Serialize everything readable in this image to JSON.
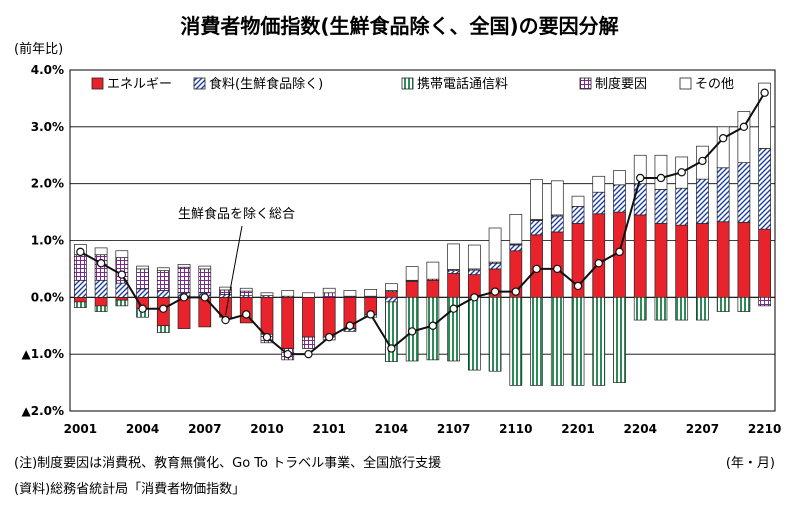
{
  "chart_data": {
    "type": "bar",
    "title": "消費者物価指数(生鮮食品除く、全国)の要因分解",
    "ylabel": "(前年比)",
    "xunit": "(年・月)",
    "ylim": [
      -2.0,
      4.0
    ],
    "ytick_values": [
      4.0,
      3.0,
      2.0,
      1.0,
      0.0,
      -1.0,
      -2.0
    ],
    "ytick_labels": [
      "4.0%",
      "3.0%",
      "2.0%",
      "1.0%",
      "0.0%",
      "▲1.0%",
      "▲2.0%"
    ],
    "x_tick_labels": [
      "2001",
      "2004",
      "2007",
      "2010",
      "2101",
      "2104",
      "2107",
      "2110",
      "2201",
      "2204",
      "2207",
      "2210"
    ],
    "x_tick_index": [
      0,
      3,
      6,
      9,
      12,
      15,
      18,
      21,
      24,
      27,
      30,
      33
    ],
    "months": [
      "2001",
      "2002",
      "2003",
      "2004",
      "2005",
      "2006",
      "2007",
      "2008",
      "2009",
      "2010",
      "2011",
      "2012",
      "2101",
      "2102",
      "2103",
      "2104",
      "2105",
      "2106",
      "2107",
      "2108",
      "2109",
      "2110",
      "2111",
      "2112",
      "2201",
      "2202",
      "2203",
      "2204",
      "2205",
      "2206",
      "2207",
      "2208",
      "2209",
      "2210"
    ],
    "grid": true,
    "legend_position": "top",
    "stacked": true,
    "series": [
      {
        "name": "エネルギー",
        "color": "#e8232b",
        "pattern": "solid",
        "values": [
          -0.08,
          -0.15,
          -0.05,
          -0.2,
          -0.5,
          -0.55,
          -0.52,
          -0.35,
          -0.45,
          -0.65,
          -0.9,
          -0.7,
          -0.7,
          -0.55,
          -0.3,
          0.1,
          0.28,
          0.3,
          0.42,
          0.4,
          0.5,
          0.82,
          1.1,
          1.15,
          1.3,
          1.47,
          1.5,
          1.45,
          1.3,
          1.27,
          1.3,
          1.33,
          1.32,
          1.2
        ]
      },
      {
        "name": "食料(生鮮食品除く)",
        "color": "#1f3fa8",
        "pattern": "diagonal",
        "values": [
          0.3,
          0.3,
          0.25,
          0.15,
          0.12,
          0.08,
          0.08,
          0.05,
          0.03,
          0.03,
          0.02,
          0.0,
          -0.05,
          -0.05,
          -0.05,
          -0.08,
          0.0,
          0.0,
          0.05,
          0.08,
          0.1,
          0.1,
          0.25,
          0.28,
          0.3,
          0.38,
          0.48,
          0.55,
          0.6,
          0.65,
          0.78,
          0.95,
          1.05,
          1.42
        ]
      },
      {
        "name": "携帯電話通信料",
        "color": "#2e8b57",
        "pattern": "vertical",
        "values": [
          -0.1,
          -0.1,
          -0.1,
          -0.15,
          -0.12,
          0.0,
          0.0,
          0.0,
          0.0,
          0.0,
          0.0,
          0.0,
          0.0,
          0.0,
          0.0,
          -1.05,
          -1.12,
          -1.1,
          -1.12,
          -1.28,
          -1.3,
          -1.55,
          -1.55,
          -1.55,
          -1.55,
          -1.55,
          -1.5,
          -0.4,
          -0.4,
          -0.4,
          -0.4,
          -0.25,
          -0.25,
          0.0
        ]
      },
      {
        "name": "制度要因",
        "color": "#7a2a8a",
        "pattern": "grid",
        "values": [
          0.45,
          0.45,
          0.45,
          0.35,
          0.35,
          0.45,
          0.42,
          0.08,
          0.08,
          -0.15,
          -0.2,
          -0.2,
          0.08,
          0.02,
          0.02,
          0.02,
          0.02,
          0.02,
          0.02,
          0.02,
          0.02,
          0.02,
          0.02,
          0.02,
          0.0,
          0.0,
          0.0,
          0.0,
          0.0,
          0.0,
          0.0,
          0.0,
          0.0,
          -0.15
        ]
      },
      {
        "name": "その他",
        "color": "#ffffff",
        "pattern": "solid",
        "values": [
          0.18,
          0.12,
          0.12,
          0.05,
          0.05,
          0.05,
          0.05,
          0.05,
          0.05,
          0.05,
          0.1,
          0.08,
          0.08,
          0.1,
          0.12,
          0.12,
          0.24,
          0.3,
          0.45,
          0.42,
          0.6,
          0.52,
          0.7,
          0.6,
          0.18,
          0.28,
          0.25,
          0.5,
          0.6,
          0.55,
          0.58,
          0.72,
          0.9,
          1.15
        ]
      }
    ],
    "total": {
      "name": "生鮮食品を除く総合",
      "values": [
        0.8,
        0.6,
        0.4,
        -0.2,
        -0.2,
        0.0,
        0.0,
        -0.4,
        -0.3,
        -0.7,
        -1.0,
        -1.0,
        -0.7,
        -0.5,
        -0.3,
        -0.9,
        -0.6,
        -0.5,
        -0.2,
        0.0,
        0.1,
        0.1,
        0.5,
        0.5,
        0.2,
        0.6,
        0.8,
        2.1,
        2.1,
        2.2,
        2.4,
        2.8,
        3.0,
        3.6
      ]
    },
    "annotation": "生鮮食品を除く総合"
  },
  "notes": {
    "note1": "(注)制度要因は消費税、教育無償化、Go To トラベル事業、全国旅行支援",
    "note2": "(資料)総務省統計局「消費者物価指数」"
  }
}
